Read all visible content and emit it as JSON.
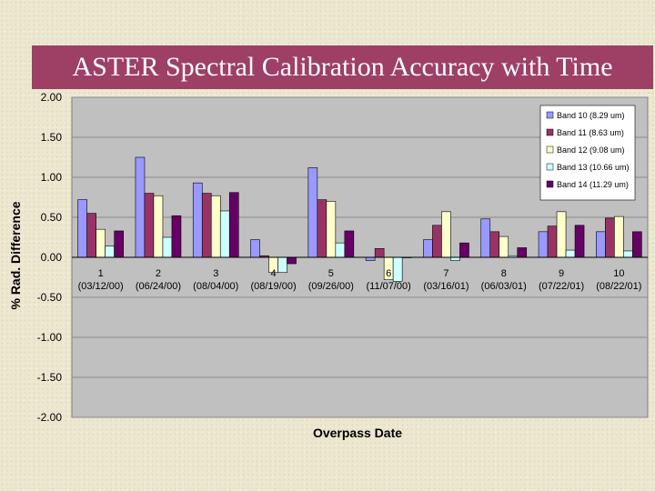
{
  "slide": {
    "title": "ASTER Spectral Calibration Accuracy with Time"
  },
  "chart_data": {
    "type": "bar",
    "title": "",
    "xlabel": "Overpass Date",
    "ylabel": "% Rad. Difference",
    "ylim": [
      -2.0,
      2.0
    ],
    "yticks": [
      "2.00",
      "1.50",
      "1.00",
      "0.50",
      "0.00",
      "-0.50",
      "-1.00",
      "-1.50",
      "-2.00"
    ],
    "categories": [
      "1",
      "2",
      "3",
      "4",
      "5",
      "6",
      "7",
      "8",
      "9",
      "10"
    ],
    "category_dates": [
      "(03/12/00)",
      "(06/24/00)",
      "(08/04/00)",
      "(08/19/00)",
      "(09/26/00)",
      "(11/07/00)",
      "(03/16/01)",
      "(06/03/01)",
      "(07/22/01)",
      "(08/22/01)"
    ],
    "legend_position": "top-right",
    "grid": "major-horizontal",
    "plot_background": "#c0c0c0",
    "series": [
      {
        "name": "Band 10 (8.29 um)",
        "color": "#9999ff",
        "values": [
          0.72,
          1.25,
          0.93,
          0.22,
          1.12,
          -0.04,
          0.22,
          0.48,
          0.32,
          0.32
        ]
      },
      {
        "name": "Band 11 (8.63 um)",
        "color": "#993366",
        "values": [
          0.55,
          0.8,
          0.8,
          0.02,
          0.72,
          0.11,
          0.4,
          0.32,
          0.39,
          0.49
        ]
      },
      {
        "name": "Band 12 (9.08 um)",
        "color": "#ffffcc",
        "values": [
          0.35,
          0.77,
          0.77,
          -0.19,
          0.7,
          -0.28,
          0.57,
          0.26,
          0.57,
          0.51
        ]
      },
      {
        "name": "Band 13 (10.66 um)",
        "color": "#ccffff",
        "values": [
          0.14,
          0.25,
          0.58,
          -0.19,
          0.18,
          -0.3,
          -0.04,
          0.02,
          0.09,
          0.08
        ]
      },
      {
        "name": "Band 14 (11.29 um)",
        "color": "#660066",
        "values": [
          0.33,
          0.52,
          0.81,
          -0.08,
          0.33,
          0.0,
          0.18,
          0.12,
          0.4,
          0.32
        ]
      }
    ]
  }
}
